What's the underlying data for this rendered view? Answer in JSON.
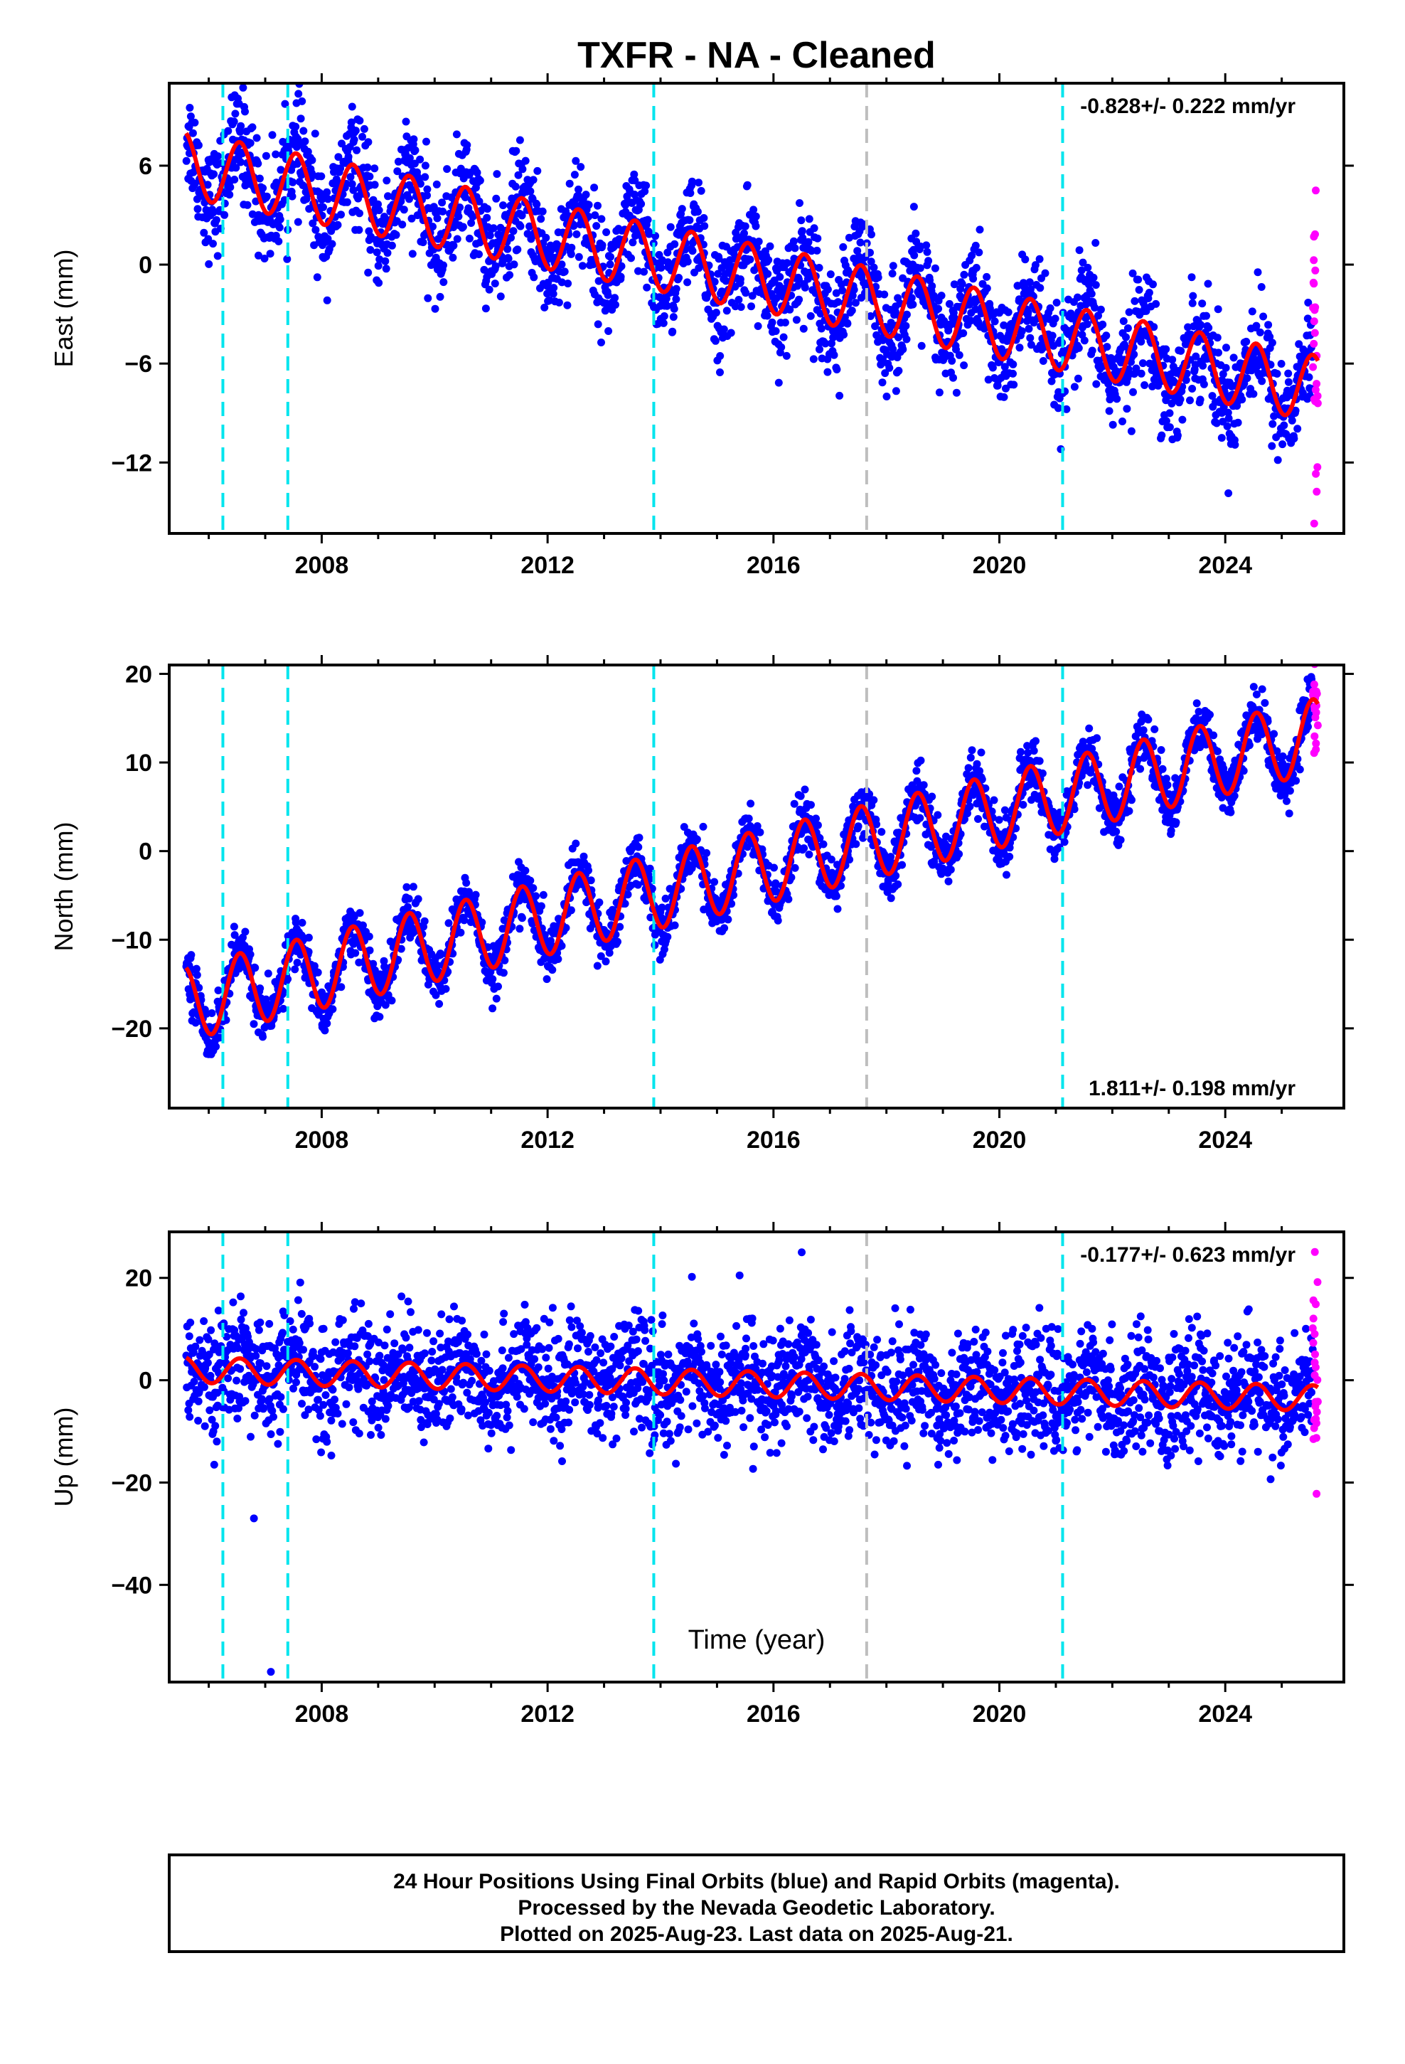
{
  "chart_data": [
    {
      "type": "scatter",
      "panel": "east",
      "title": "TXFR  - NA - Cleaned",
      "ylabel": "East (mm)",
      "xlim": [
        2005.3,
        2026.1
      ],
      "ylim": [
        -16.3,
        11.0
      ],
      "yticks": [
        6,
        0,
        -6,
        -12
      ],
      "ytick_labels": [
        "6",
        "0",
        "−6",
        "−12"
      ],
      "xticks": [
        2008,
        2012,
        2016,
        2020,
        2024
      ],
      "grid": false,
      "rate_text": "-0.828+/- 0.222 mm/yr",
      "rate_position": "top-right",
      "trend": {
        "start": [
          2005.7,
          6.0
        ],
        "end": [
          2025.6,
          -7.5
        ],
        "seasonal_amplitude": 2.0
      },
      "scatter_sd": 1.6,
      "offsets": [
        {
          "x": 2013.9,
          "dy": 2.0
        },
        {
          "x": 2021.1,
          "dy": 0.8
        }
      ],
      "event_lines": [
        {
          "x": 2006.25,
          "color": "#00e5ee"
        },
        {
          "x": 2007.4,
          "color": "#00e5ee"
        },
        {
          "x": 2013.88,
          "color": "#00e5ee"
        },
        {
          "x": 2017.65,
          "color": "#bebebe"
        },
        {
          "x": 2021.12,
          "color": "#00e5ee"
        }
      ],
      "series": [
        {
          "name": "Final Orbits",
          "color": "#0000ff",
          "x_range": [
            2005.6,
            2025.55
          ]
        },
        {
          "name": "Rapid Orbits",
          "color": "#ff00ff",
          "x_range": [
            2025.55,
            2025.64
          ]
        },
        {
          "name": "Model",
          "color": "#ff0000"
        }
      ]
    },
    {
      "type": "scatter",
      "panel": "north",
      "ylabel": "North (mm)",
      "xlim": [
        2005.3,
        2026.1
      ],
      "ylim": [
        -29.0,
        21.0
      ],
      "yticks": [
        20,
        10,
        0,
        -10,
        -20
      ],
      "ytick_labels": [
        "20",
        "10",
        "0",
        "−10",
        "−20"
      ],
      "xticks": [
        2008,
        2012,
        2016,
        2020,
        2024
      ],
      "grid": false,
      "rate_text": "1.811+/- 0.198 mm/yr",
      "rate_position": "bottom-right",
      "trend": {
        "start": [
          2005.7,
          -17.0
        ],
        "end": [
          2025.6,
          13.0
        ],
        "seasonal_amplitude": 4.2
      },
      "scatter_sd": 1.5,
      "offsets": [],
      "event_lines": [
        {
          "x": 2006.25,
          "color": "#00e5ee"
        },
        {
          "x": 2007.4,
          "color": "#00e5ee"
        },
        {
          "x": 2013.88,
          "color": "#00e5ee"
        },
        {
          "x": 2017.65,
          "color": "#bebebe"
        },
        {
          "x": 2021.12,
          "color": "#00e5ee"
        }
      ],
      "series": [
        {
          "name": "Final Orbits",
          "color": "#0000ff",
          "x_range": [
            2005.6,
            2025.55
          ]
        },
        {
          "name": "Rapid Orbits",
          "color": "#ff00ff",
          "x_range": [
            2025.55,
            2025.64
          ]
        },
        {
          "name": "Model",
          "color": "#ff0000"
        }
      ]
    },
    {
      "type": "scatter",
      "panel": "up",
      "ylabel": "Up (mm)",
      "xlabel": "Time (year)",
      "xlim": [
        2005.3,
        2026.1
      ],
      "ylim": [
        -59.0,
        29.0
      ],
      "yticks": [
        20,
        0,
        -20,
        -40
      ],
      "ytick_labels": [
        "20",
        "0",
        "−20",
        "−40"
      ],
      "xticks": [
        2008,
        2012,
        2016,
        2020,
        2024
      ],
      "grid": false,
      "rate_text": "-0.177+/- 0.623 mm/yr",
      "rate_position": "top-right",
      "trend": {
        "start": [
          2005.7,
          2.0
        ],
        "end": [
          2025.6,
          -3.5
        ],
        "seasonal_amplitude": 2.5
      },
      "scatter_sd": 5.5,
      "offsets": [
        {
          "x": 2006.25,
          "dy": -3.5
        },
        {
          "x": 2013.88,
          "dy": 4.5
        },
        {
          "x": 2017.65,
          "dy": -3.5
        },
        {
          "x": 2021.12,
          "dy": -4.5
        }
      ],
      "event_lines": [
        {
          "x": 2006.25,
          "color": "#00e5ee"
        },
        {
          "x": 2007.4,
          "color": "#00e5ee"
        },
        {
          "x": 2013.88,
          "color": "#00e5ee"
        },
        {
          "x": 2017.65,
          "color": "#bebebe"
        },
        {
          "x": 2021.12,
          "color": "#00e5ee"
        }
      ],
      "outliers": [
        [
          2007.1,
          -57.0
        ],
        [
          2006.8,
          -27.0
        ],
        [
          2016.5,
          25.0
        ]
      ],
      "series": [
        {
          "name": "Final Orbits",
          "color": "#0000ff",
          "x_range": [
            2005.6,
            2025.55
          ]
        },
        {
          "name": "Rapid Orbits",
          "color": "#ff00ff",
          "x_range": [
            2025.55,
            2025.64
          ]
        },
        {
          "name": "Model",
          "color": "#ff0000"
        }
      ]
    }
  ],
  "footer": {
    "line1": "24 Hour Positions Using Final Orbits (blue) and Rapid Orbits (magenta).",
    "line2": "Processed by the Nevada Geodetic Laboratory.",
    "line3": "Plotted on 2025-Aug-23. Last data on 2025-Aug-21."
  }
}
